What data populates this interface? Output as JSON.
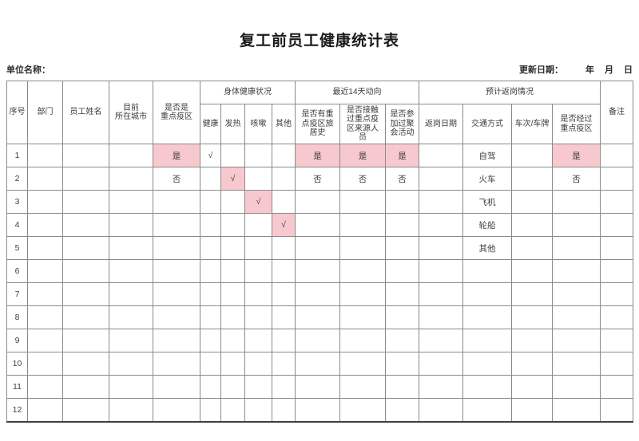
{
  "page": {
    "title": "复工前员工健康统计表",
    "unit_name_label": "单位名称：",
    "update_date_label": "更新日期：",
    "date_units": [
      "年",
      "月",
      "日"
    ]
  },
  "colors": {
    "highlight_bg": "#f8c8cf",
    "highlight_text": "#b23945",
    "text": "#3c3c3c",
    "border": "#8a8a8a"
  },
  "table": {
    "group_headers": {
      "health_status": "身体健康状况",
      "recent_14_days": "最近14天动向",
      "return_plan": "预计返岗情况"
    },
    "headers": {
      "seq": "序号",
      "dept": "部门",
      "name": "员工姓名",
      "city": "目前\n所在城市",
      "key_area": "是否是\n重点疫区",
      "healthy": "健康",
      "fever": "发热",
      "cough": "咳嗽",
      "other": "其他",
      "travel_history": "是否有重\n点疫区旅\n居史",
      "contact": "是否接触\n过重点疫\n区来源人\n员",
      "party": "是否参\n加过聚\n会活动",
      "return_date": "返岗日期",
      "transport": "交通方式",
      "vehicle": "车次/车牌",
      "pass_key_area": "是否经过\n重点疫区",
      "remark": "备注"
    },
    "rows": [
      [
        {
          "t": "1"
        },
        {},
        {},
        {},
        {
          "t": "是",
          "hl": true
        },
        {
          "t": "√"
        },
        {},
        {},
        {},
        {
          "t": "是",
          "hl": true
        },
        {
          "t": "是",
          "hl": true
        },
        {
          "t": "是",
          "hl": true
        },
        {},
        {
          "t": "自驾"
        },
        {},
        {
          "t": "是",
          "hl": true
        },
        {}
      ],
      [
        {
          "t": "2"
        },
        {},
        {},
        {},
        {
          "t": "否"
        },
        {},
        {
          "t": "√",
          "hl": true
        },
        {},
        {},
        {
          "t": "否"
        },
        {
          "t": "否"
        },
        {
          "t": "否"
        },
        {},
        {
          "t": "火车"
        },
        {},
        {
          "t": "否"
        },
        {}
      ],
      [
        {
          "t": "3"
        },
        {},
        {},
        {},
        {},
        {},
        {},
        {
          "t": "√",
          "hl": true
        },
        {},
        {},
        {},
        {},
        {},
        {
          "t": "飞机"
        },
        {},
        {},
        {}
      ],
      [
        {
          "t": "4"
        },
        {},
        {},
        {},
        {},
        {},
        {},
        {},
        {
          "t": "√",
          "hl": true
        },
        {},
        {},
        {},
        {},
        {
          "t": "轮船"
        },
        {},
        {},
        {}
      ],
      [
        {
          "t": "5"
        },
        {},
        {},
        {},
        {},
        {},
        {},
        {},
        {},
        {},
        {},
        {},
        {},
        {
          "t": "其他"
        },
        {},
        {},
        {}
      ],
      [
        {
          "t": "6"
        },
        {},
        {},
        {},
        {},
        {},
        {},
        {},
        {},
        {},
        {},
        {},
        {},
        {},
        {},
        {},
        {}
      ],
      [
        {
          "t": "7"
        },
        {},
        {},
        {},
        {},
        {},
        {},
        {},
        {},
        {},
        {},
        {},
        {},
        {},
        {},
        {},
        {}
      ],
      [
        {
          "t": "8"
        },
        {},
        {},
        {},
        {},
        {},
        {},
        {},
        {},
        {},
        {},
        {},
        {},
        {},
        {},
        {},
        {}
      ],
      [
        {
          "t": "9"
        },
        {},
        {},
        {},
        {},
        {},
        {},
        {},
        {},
        {},
        {},
        {},
        {},
        {},
        {},
        {},
        {}
      ],
      [
        {
          "t": "10"
        },
        {},
        {},
        {},
        {},
        {},
        {},
        {},
        {},
        {},
        {},
        {},
        {},
        {},
        {},
        {},
        {}
      ],
      [
        {
          "t": "11"
        },
        {},
        {},
        {},
        {},
        {},
        {},
        {},
        {},
        {},
        {},
        {},
        {},
        {},
        {},
        {},
        {}
      ],
      [
        {
          "t": "12"
        },
        {},
        {},
        {},
        {},
        {},
        {},
        {},
        {},
        {},
        {},
        {},
        {},
        {},
        {},
        {},
        {}
      ]
    ]
  }
}
